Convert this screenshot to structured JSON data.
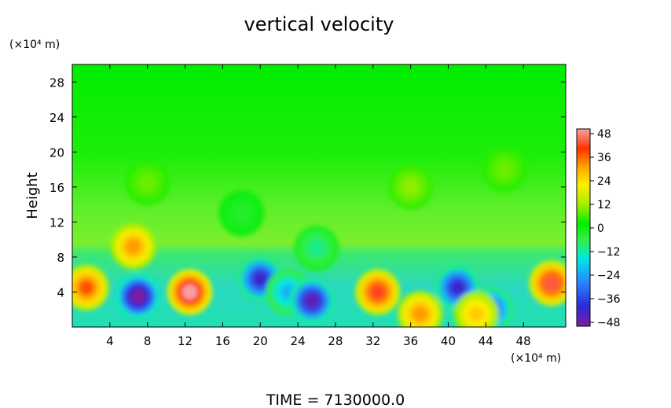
{
  "chart_data": {
    "type": "heatmap",
    "title": "vertical velocity",
    "ylabel": "Height",
    "y_unit": "(×10⁴ m)",
    "x_unit": "(×10⁴ m)",
    "xlim": [
      0,
      52.5
    ],
    "ylim": [
      0,
      30
    ],
    "x_ticks": [
      4,
      8,
      12,
      16,
      20,
      24,
      28,
      32,
      36,
      40,
      44,
      48
    ],
    "y_ticks": [
      4,
      8,
      12,
      16,
      20,
      24,
      28
    ],
    "grid": false,
    "colorbar": {
      "ticks": [
        48,
        36,
        24,
        12,
        0,
        -12,
        -24,
        -36,
        -48
      ],
      "range": [
        -48,
        48
      ],
      "colors": [
        "#7a1fa2",
        "#2a2ad8",
        "#2a82ff",
        "#00e6e6",
        "#33ee44",
        "#00ee00",
        "#aaee00",
        "#ffee00",
        "#ffaa00",
        "#ff3300",
        "#f7a0a0"
      ]
    },
    "features": [
      {
        "x": 1.5,
        "y": 4.5,
        "value": 36
      },
      {
        "x": 7.0,
        "y": 3.5,
        "value": -48
      },
      {
        "x": 12.5,
        "y": 4.0,
        "value": 48
      },
      {
        "x": 6.5,
        "y": 9.2,
        "value": 30
      },
      {
        "x": 20.0,
        "y": 5.5,
        "value": -40
      },
      {
        "x": 23.0,
        "y": 4.0,
        "value": -24
      },
      {
        "x": 25.5,
        "y": 3.0,
        "value": -44
      },
      {
        "x": 32.5,
        "y": 4.0,
        "value": 40
      },
      {
        "x": 37.0,
        "y": 1.5,
        "value": 30
      },
      {
        "x": 41.0,
        "y": 4.5,
        "value": -40
      },
      {
        "x": 44.5,
        "y": 2.0,
        "value": -36
      },
      {
        "x": 43.0,
        "y": 1.5,
        "value": 24
      },
      {
        "x": 51.0,
        "y": 5.0,
        "value": 42
      },
      {
        "x": 26.0,
        "y": 9.0,
        "value": -14
      },
      {
        "x": 36.0,
        "y": 16.0,
        "value": 8
      },
      {
        "x": 8.0,
        "y": 16.5,
        "value": 6
      },
      {
        "x": 46.0,
        "y": 18.0,
        "value": 6
      },
      {
        "x": 18.0,
        "y": 13.0,
        "value": -6
      }
    ]
  },
  "footer": {
    "time_label": "TIME  =  7130000.0"
  }
}
